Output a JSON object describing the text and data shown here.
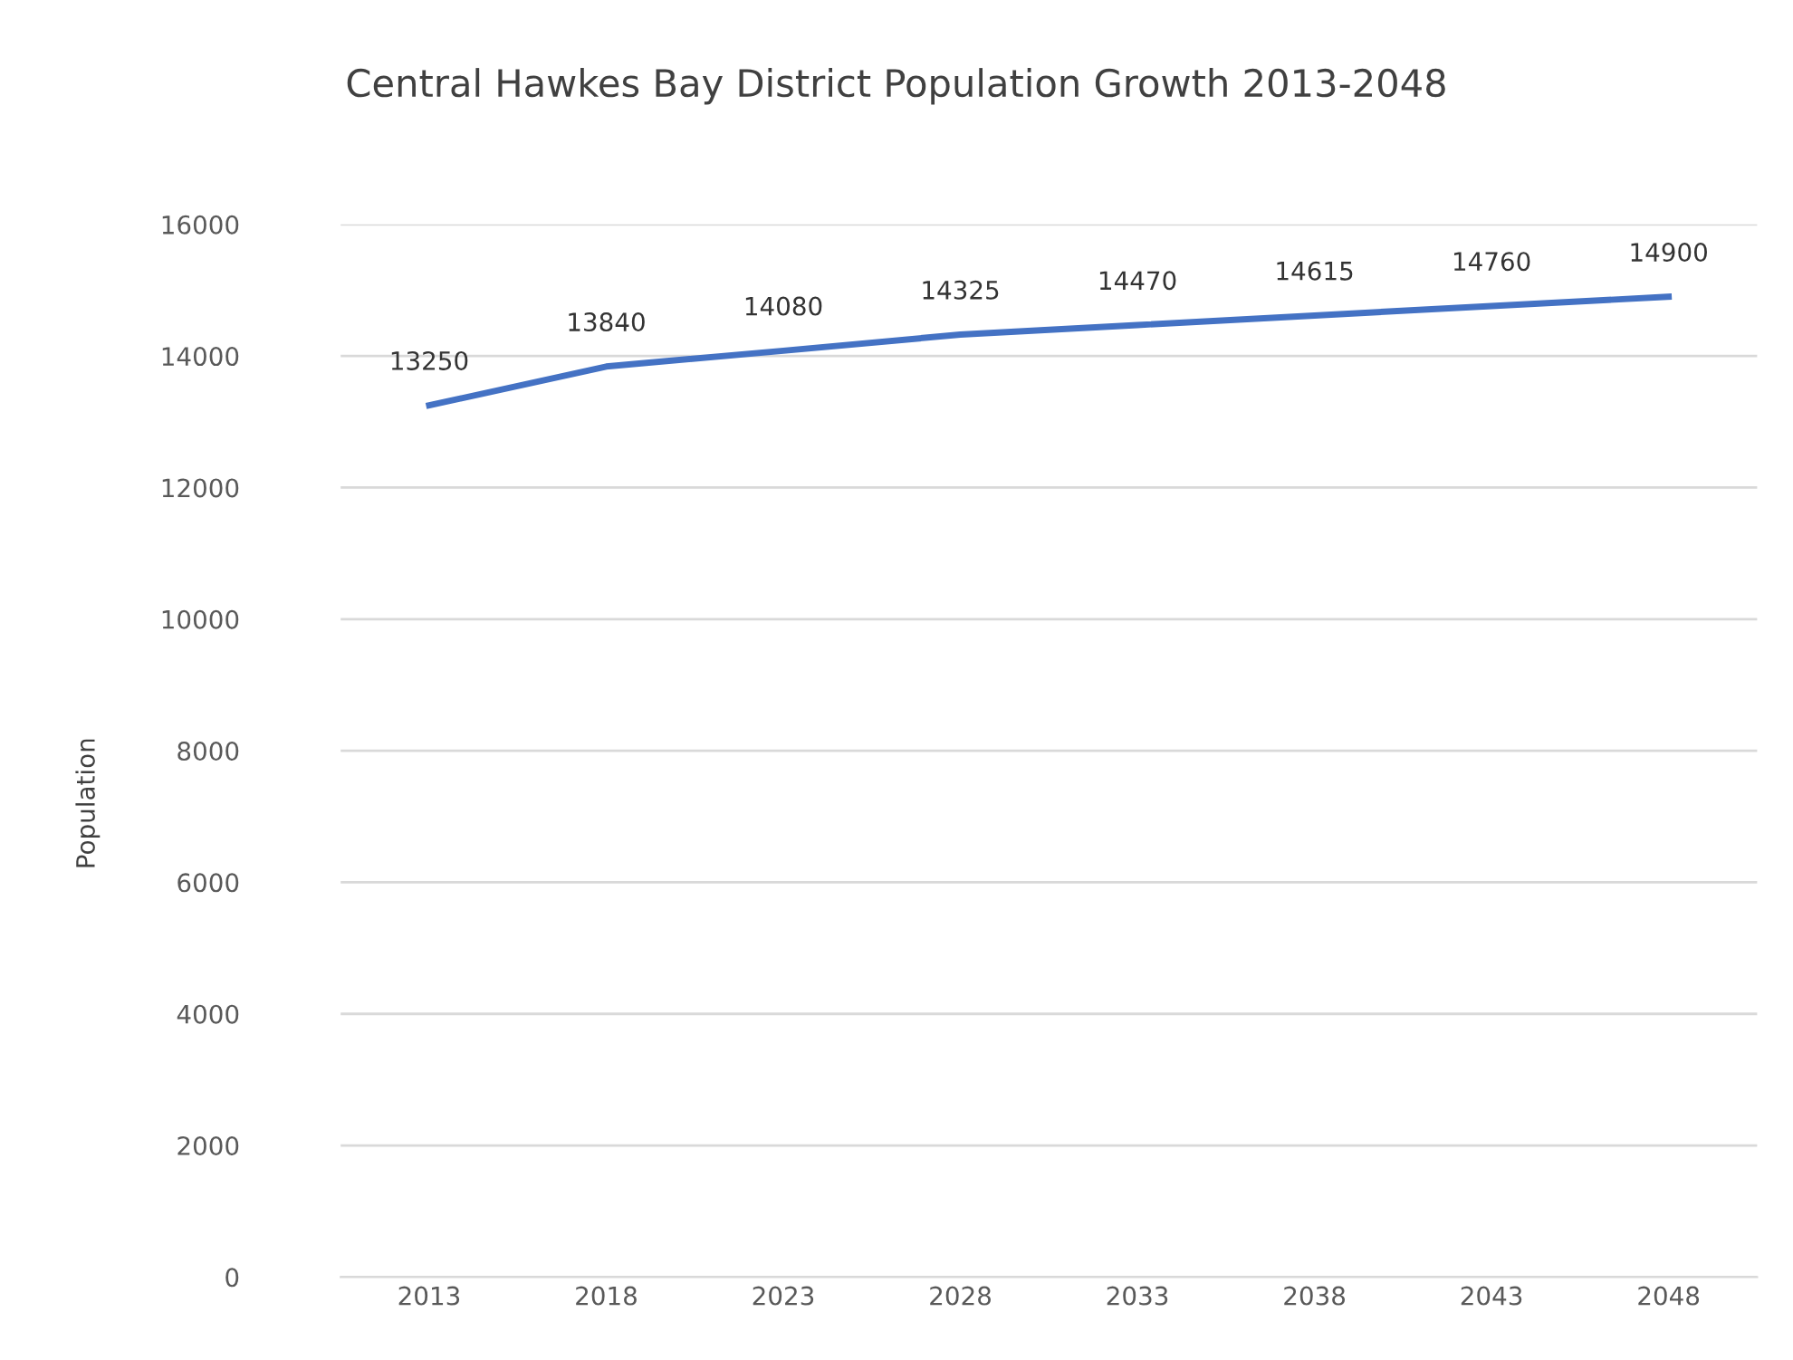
{
  "chart_data": {
    "type": "line",
    "title": "Central Hawkes Bay District Population Growth 2013-2048",
    "ylabel": "Population",
    "categories": [
      "2013",
      "2018",
      "2023",
      "2028",
      "2033",
      "2038",
      "2043",
      "2048"
    ],
    "series": [
      {
        "color": "#4472c4",
        "values": [
          13250,
          13840,
          14080,
          14325,
          14470,
          14615,
          14760,
          14900
        ]
      }
    ],
    "ylim": [
      0,
      16000
    ],
    "yticks": [
      0,
      2000,
      4000,
      6000,
      8000,
      10000,
      12000,
      14000,
      16000
    ],
    "grid": "y",
    "data_labels": true,
    "marker": "none",
    "line_style": "solid",
    "legend": false
  }
}
